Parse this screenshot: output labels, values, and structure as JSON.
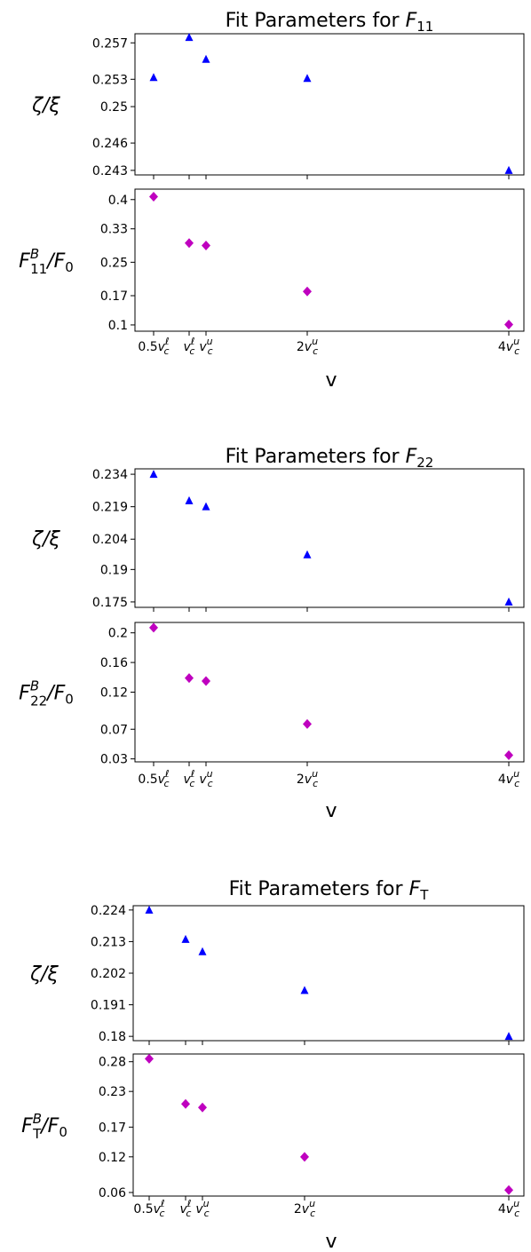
{
  "chart_data": [
    {
      "type": "scatter",
      "title": {
        "text": "Fit Parameters for ",
        "math_base": "F",
        "math_sub": "11"
      },
      "xlabel": "v",
      "x_ticks": [
        {
          "value": 0.5,
          "label": {
            "pre": "0.5",
            "base": "v",
            "sub": "c",
            "sup": "ℓ"
          }
        },
        {
          "value": 0.9,
          "label": {
            "pre": "",
            "base": "v",
            "sub": "c",
            "sup": "ℓ"
          }
        },
        {
          "value": 1.0,
          "label": {
            "pre": "",
            "base": "v",
            "sub": "c",
            "sup": "u"
          }
        },
        {
          "value": 2.0,
          "label": {
            "pre": "2",
            "base": "v",
            "sub": "c",
            "sup": "u"
          }
        },
        {
          "value": 4.0,
          "label": {
            "pre": "4",
            "base": "v",
            "sub": "c",
            "sup": "u"
          }
        }
      ],
      "panels": [
        {
          "ylabel": {
            "text": "ζ/ξ"
          },
          "yticks": [
            "0.243",
            "0.246",
            "0.25",
            "0.253",
            "0.257"
          ],
          "ylim": [
            0.2425,
            0.258
          ],
          "marker": "triangle",
          "color": "#0000ff",
          "x": [
            0.5,
            0.9,
            1.0,
            2.0,
            4.0
          ],
          "y": [
            0.2532,
            0.2576,
            0.2552,
            0.2531,
            0.243
          ]
        },
        {
          "ylabel": {
            "base": "F",
            "sub": "11",
            "sup": "B",
            "post": "/F",
            "post_sub": "0"
          },
          "yticks": [
            "0.1",
            "0.17",
            "0.25",
            "0.33",
            "0.4"
          ],
          "ylim": [
            0.085,
            0.425
          ],
          "marker": "diamond",
          "color": "#bf00bf",
          "x": [
            0.5,
            0.9,
            1.0,
            2.0,
            4.0
          ],
          "y": [
            0.407,
            0.296,
            0.29,
            0.18,
            0.101
          ]
        }
      ]
    },
    {
      "type": "scatter",
      "title": {
        "text": "Fit Parameters for ",
        "math_base": "F",
        "math_sub": "22"
      },
      "xlabel": "v",
      "x_ticks": [
        {
          "value": 0.5,
          "label": {
            "pre": "0.5",
            "base": "v",
            "sub": "c",
            "sup": "ℓ"
          }
        },
        {
          "value": 0.9,
          "label": {
            "pre": "",
            "base": "v",
            "sub": "c",
            "sup": "ℓ"
          }
        },
        {
          "value": 1.0,
          "label": {
            "pre": "",
            "base": "v",
            "sub": "c",
            "sup": "u"
          }
        },
        {
          "value": 2.0,
          "label": {
            "pre": "2",
            "base": "v",
            "sub": "c",
            "sup": "u"
          }
        },
        {
          "value": 4.0,
          "label": {
            "pre": "4",
            "base": "v",
            "sub": "c",
            "sup": "u"
          }
        }
      ],
      "panels": [
        {
          "ylabel": {
            "text": "ζ/ξ"
          },
          "yticks": [
            "0.175",
            "0.19",
            "0.204",
            "0.219",
            "0.234"
          ],
          "ylim": [
            0.1725,
            0.2365
          ],
          "marker": "triangle",
          "color": "#0000ff",
          "x": [
            0.5,
            0.9,
            1.0,
            2.0,
            4.0
          ],
          "y": [
            0.234,
            0.2218,
            0.219,
            0.1968,
            0.175
          ]
        },
        {
          "ylabel": {
            "base": "F",
            "sub": "22",
            "sup": "B",
            "post": "/F",
            "post_sub": "0"
          },
          "yticks": [
            "0.03",
            "0.07",
            "0.12",
            "0.16",
            "0.2"
          ],
          "ylim": [
            0.026,
            0.214
          ],
          "marker": "diamond",
          "color": "#bf00bf",
          "x": [
            0.5,
            0.9,
            1.0,
            2.0,
            4.0
          ],
          "y": [
            0.207,
            0.139,
            0.135,
            0.077,
            0.035
          ]
        }
      ]
    },
    {
      "type": "scatter",
      "title": {
        "text": "Fit Parameters for ",
        "math_base": "F",
        "math_sub": "T"
      },
      "xlabel": "v",
      "x_ticks": [
        {
          "value": 0.5,
          "label": {
            "pre": "0.5",
            "base": "v",
            "sub": "c",
            "sup": "ℓ"
          }
        },
        {
          "value": 0.9,
          "label": {
            "pre": "",
            "base": "v",
            "sub": "c",
            "sup": "ℓ"
          }
        },
        {
          "value": 1.0,
          "label": {
            "pre": "",
            "base": "v",
            "sub": "c",
            "sup": "u"
          }
        },
        {
          "value": 2.0,
          "label": {
            "pre": "2",
            "base": "v",
            "sub": "c",
            "sup": "u"
          }
        },
        {
          "value": 4.0,
          "label": {
            "pre": "4",
            "base": "v",
            "sub": "c",
            "sup": "u"
          }
        }
      ],
      "panels": [
        {
          "ylabel": {
            "text": "ζ/ξ"
          },
          "yticks": [
            "0.18",
            "0.191",
            "0.202",
            "0.213",
            "0.224"
          ],
          "ylim": [
            0.1785,
            0.2255
          ],
          "marker": "triangle",
          "color": "#0000ff",
          "x": [
            0.5,
            0.9,
            1.0,
            2.0,
            4.0
          ],
          "y": [
            0.224,
            0.2138,
            0.2095,
            0.196,
            0.18
          ]
        },
        {
          "ylabel": {
            "base": "F",
            "sub": "T",
            "sup": "B",
            "post": "/F",
            "post_sub": "0"
          },
          "yticks": [
            "0.06",
            "0.12",
            "0.17",
            "0.23",
            "0.28"
          ],
          "ylim": [
            0.054,
            0.293
          ],
          "marker": "diamond",
          "color": "#bf00bf",
          "x": [
            0.5,
            0.9,
            1.0,
            2.0,
            4.0
          ],
          "y": [
            0.285,
            0.209,
            0.203,
            0.12,
            0.064
          ]
        }
      ]
    }
  ]
}
